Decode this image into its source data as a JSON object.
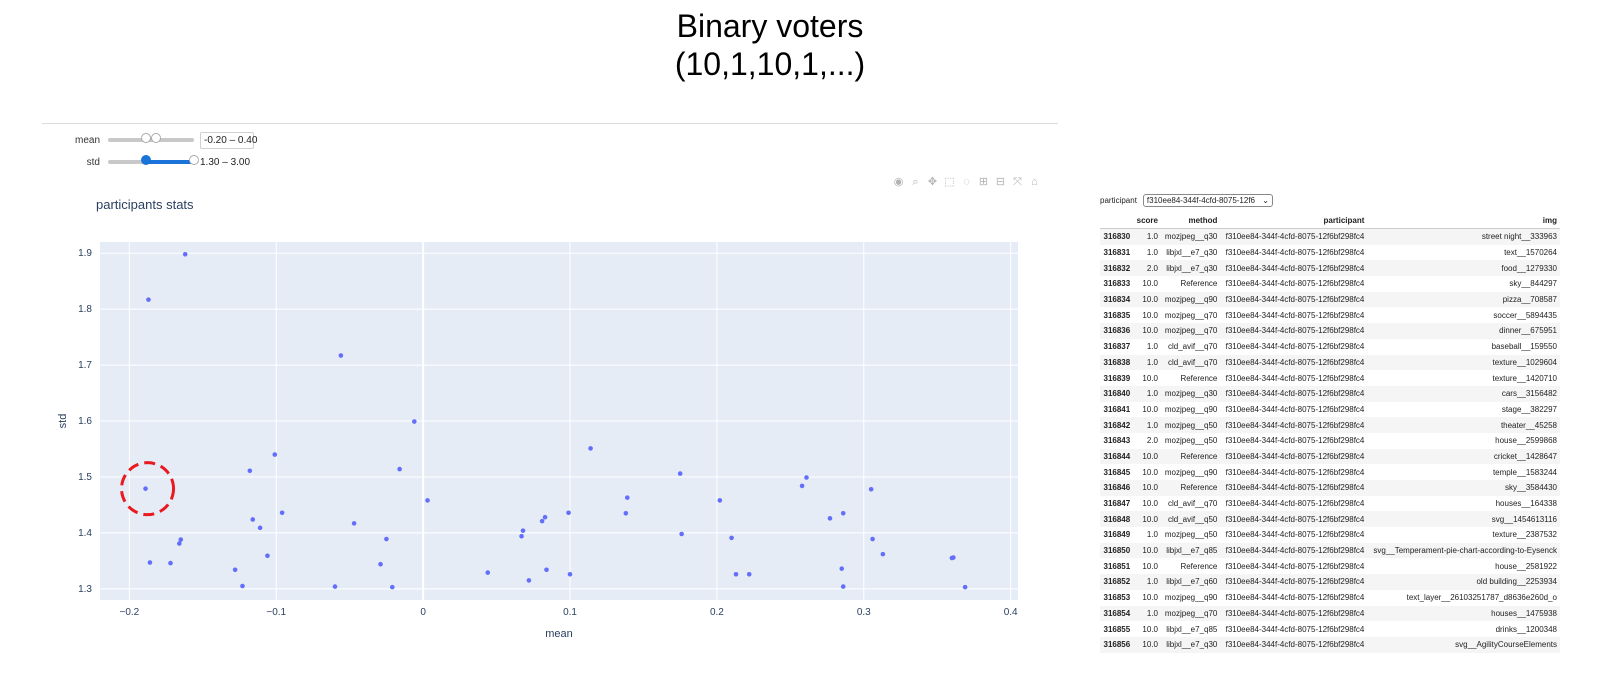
{
  "slide": {
    "title_line1": "Binary voters",
    "title_line2": "(10,1,10,1,...)"
  },
  "sliders": [
    {
      "label": "mean",
      "range_text": "-0.20 – 0.40",
      "low_frac": 0.44,
      "high_frac": 0.56
    },
    {
      "label": "std",
      "range_text": "1.30 – 3.00",
      "low_frac": 0.44,
      "high_frac": 1.0
    }
  ],
  "modebar_icons": [
    "camera-icon",
    "zoom-icon",
    "pan-icon",
    "box-select-icon",
    "lasso-icon",
    "zoom-in-icon",
    "zoom-out-icon",
    "autoscale-icon",
    "reset-axes-icon"
  ],
  "colors": {
    "marker": "#636efa",
    "plot_bg": "#e5ecf6",
    "highlight": "#e8191f",
    "slider_active": "#1a73d9"
  },
  "chart_data": {
    "type": "scatter",
    "title": "participants stats",
    "xlabel": "mean",
    "ylabel": "std",
    "xlim": [
      -0.22,
      0.405
    ],
    "ylim": [
      1.28,
      1.92
    ],
    "x_ticks": [
      "−0.2",
      "−0.1",
      "0",
      "0.1",
      "0.2",
      "0.3",
      "0.4"
    ],
    "x_tick_values": [
      -0.2,
      -0.1,
      0,
      0.1,
      0.2,
      0.3,
      0.4
    ],
    "y_ticks": [
      "1.3",
      "1.4",
      "1.5",
      "1.6",
      "1.7",
      "1.8",
      "1.9"
    ],
    "y_tick_values": [
      1.3,
      1.4,
      1.5,
      1.6,
      1.7,
      1.8,
      1.9
    ],
    "highlighted_point": {
      "x": -0.189,
      "y": 1.479
    },
    "points": [
      {
        "x": -0.187,
        "y": 1.817
      },
      {
        "x": -0.162,
        "y": 1.898
      },
      {
        "x": -0.189,
        "y": 1.479
      },
      {
        "x": -0.186,
        "y": 1.347
      },
      {
        "x": -0.172,
        "y": 1.346
      },
      {
        "x": -0.166,
        "y": 1.381
      },
      {
        "x": -0.165,
        "y": 1.388
      },
      {
        "x": -0.128,
        "y": 1.334
      },
      {
        "x": -0.123,
        "y": 1.305
      },
      {
        "x": -0.118,
        "y": 1.511
      },
      {
        "x": -0.116,
        "y": 1.424
      },
      {
        "x": -0.111,
        "y": 1.409
      },
      {
        "x": -0.106,
        "y": 1.359
      },
      {
        "x": -0.101,
        "y": 1.54
      },
      {
        "x": -0.096,
        "y": 1.436
      },
      {
        "x": -0.06,
        "y": 1.304
      },
      {
        "x": -0.056,
        "y": 1.717
      },
      {
        "x": -0.047,
        "y": 1.417
      },
      {
        "x": -0.029,
        "y": 1.344
      },
      {
        "x": -0.025,
        "y": 1.389
      },
      {
        "x": -0.021,
        "y": 1.303
      },
      {
        "x": -0.016,
        "y": 1.514
      },
      {
        "x": -0.006,
        "y": 1.599
      },
      {
        "x": 0.003,
        "y": 1.458
      },
      {
        "x": 0.044,
        "y": 1.329
      },
      {
        "x": 0.067,
        "y": 1.394
      },
      {
        "x": 0.068,
        "y": 1.404
      },
      {
        "x": 0.072,
        "y": 1.315
      },
      {
        "x": 0.081,
        "y": 1.421
      },
      {
        "x": 0.083,
        "y": 1.428
      },
      {
        "x": 0.084,
        "y": 1.334
      },
      {
        "x": 0.099,
        "y": 1.436
      },
      {
        "x": 0.1,
        "y": 1.326
      },
      {
        "x": 0.114,
        "y": 1.551
      },
      {
        "x": 0.138,
        "y": 1.435
      },
      {
        "x": 0.139,
        "y": 1.463
      },
      {
        "x": 0.175,
        "y": 1.506
      },
      {
        "x": 0.176,
        "y": 1.398
      },
      {
        "x": 0.202,
        "y": 1.458
      },
      {
        "x": 0.21,
        "y": 1.391
      },
      {
        "x": 0.213,
        "y": 1.326
      },
      {
        "x": 0.222,
        "y": 1.326
      },
      {
        "x": 0.258,
        "y": 1.484
      },
      {
        "x": 0.261,
        "y": 1.499
      },
      {
        "x": 0.277,
        "y": 1.426
      },
      {
        "x": 0.285,
        "y": 1.336
      },
      {
        "x": 0.286,
        "y": 1.304
      },
      {
        "x": 0.286,
        "y": 1.435
      },
      {
        "x": 0.305,
        "y": 1.478
      },
      {
        "x": 0.306,
        "y": 1.389
      },
      {
        "x": 0.313,
        "y": 1.362
      },
      {
        "x": 0.36,
        "y": 1.355
      },
      {
        "x": 0.361,
        "y": 1.356
      },
      {
        "x": 0.369,
        "y": 1.303
      }
    ]
  },
  "table_panel": {
    "filter_label": "participant",
    "filter_value": "f310ee84-344f-4cfd-8075-12f6",
    "columns": [
      "",
      "score",
      "method",
      "participant",
      "img"
    ],
    "rows": [
      [
        "316830",
        "1.0",
        "mozjpeg__q30",
        "f310ee84-344f-4cfd-8075-12f6bf298fc4",
        "street night__333963"
      ],
      [
        "316831",
        "1.0",
        "libjxl__e7_q30",
        "f310ee84-344f-4cfd-8075-12f6bf298fc4",
        "text__1570264"
      ],
      [
        "316832",
        "2.0",
        "libjxl__e7_q30",
        "f310ee84-344f-4cfd-8075-12f6bf298fc4",
        "food__1279330"
      ],
      [
        "316833",
        "10.0",
        "Reference",
        "f310ee84-344f-4cfd-8075-12f6bf298fc4",
        "sky__844297"
      ],
      [
        "316834",
        "10.0",
        "mozjpeg__q90",
        "f310ee84-344f-4cfd-8075-12f6bf298fc4",
        "pizza__708587"
      ],
      [
        "316835",
        "10.0",
        "mozjpeg__q70",
        "f310ee84-344f-4cfd-8075-12f6bf298fc4",
        "soccer__5894435"
      ],
      [
        "316836",
        "10.0",
        "mozjpeg__q70",
        "f310ee84-344f-4cfd-8075-12f6bf298fc4",
        "dinner__675951"
      ],
      [
        "316837",
        "1.0",
        "cld_avif__q70",
        "f310ee84-344f-4cfd-8075-12f6bf298fc4",
        "baseball__159550"
      ],
      [
        "316838",
        "1.0",
        "cld_avif__q70",
        "f310ee84-344f-4cfd-8075-12f6bf298fc4",
        "texture__1029604"
      ],
      [
        "316839",
        "10.0",
        "Reference",
        "f310ee84-344f-4cfd-8075-12f6bf298fc4",
        "texture__1420710"
      ],
      [
        "316840",
        "1.0",
        "mozjpeg__q30",
        "f310ee84-344f-4cfd-8075-12f6bf298fc4",
        "cars__3156482"
      ],
      [
        "316841",
        "10.0",
        "mozjpeg__q90",
        "f310ee84-344f-4cfd-8075-12f6bf298fc4",
        "stage__382297"
      ],
      [
        "316842",
        "1.0",
        "mozjpeg__q50",
        "f310ee84-344f-4cfd-8075-12f6bf298fc4",
        "theater__45258"
      ],
      [
        "316843",
        "2.0",
        "mozjpeg__q50",
        "f310ee84-344f-4cfd-8075-12f6bf298fc4",
        "house__2599868"
      ],
      [
        "316844",
        "10.0",
        "Reference",
        "f310ee84-344f-4cfd-8075-12f6bf298fc4",
        "cricket__1428647"
      ],
      [
        "316845",
        "10.0",
        "mozjpeg__q90",
        "f310ee84-344f-4cfd-8075-12f6bf298fc4",
        "temple__1583244"
      ],
      [
        "316846",
        "10.0",
        "Reference",
        "f310ee84-344f-4cfd-8075-12f6bf298fc4",
        "sky__3584430"
      ],
      [
        "316847",
        "10.0",
        "cld_avif__q70",
        "f310ee84-344f-4cfd-8075-12f6bf298fc4",
        "houses__164338"
      ],
      [
        "316848",
        "10.0",
        "cld_avif__q50",
        "f310ee84-344f-4cfd-8075-12f6bf298fc4",
        "svg__1454613116"
      ],
      [
        "316849",
        "1.0",
        "mozjpeg__q50",
        "f310ee84-344f-4cfd-8075-12f6bf298fc4",
        "texture__2387532"
      ],
      [
        "316850",
        "10.0",
        "libjxl__e7_q85",
        "f310ee84-344f-4cfd-8075-12f6bf298fc4",
        "svg__Temperament-pie-chart-according-to-Eysenck"
      ],
      [
        "316851",
        "10.0",
        "Reference",
        "f310ee84-344f-4cfd-8075-12f6bf298fc4",
        "house__2581922"
      ],
      [
        "316852",
        "1.0",
        "libjxl__e7_q60",
        "f310ee84-344f-4cfd-8075-12f6bf298fc4",
        "old building__2253934"
      ],
      [
        "316853",
        "10.0",
        "mozjpeg__q90",
        "f310ee84-344f-4cfd-8075-12f6bf298fc4",
        "text_layer__26103251787_d8636e260d_o"
      ],
      [
        "316854",
        "1.0",
        "mozjpeg__q70",
        "f310ee84-344f-4cfd-8075-12f6bf298fc4",
        "houses__1475938"
      ],
      [
        "316855",
        "10.0",
        "libjxl__e7_q85",
        "f310ee84-344f-4cfd-8075-12f6bf298fc4",
        "drinks__1200348"
      ],
      [
        "316856",
        "10.0",
        "libjxl__e7_q30",
        "f310ee84-344f-4cfd-8075-12f6bf298fc4",
        "svg__AgilityCourseElements"
      ]
    ]
  }
}
